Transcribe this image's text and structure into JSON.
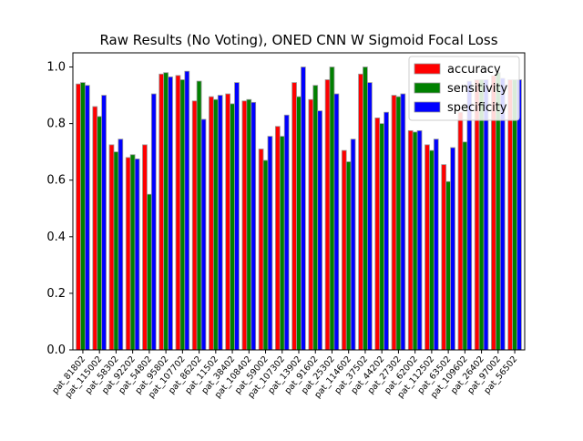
{
  "chart_data": {
    "type": "bar",
    "title": "Raw Results (No Voting), ONED CNN W Sigmoid Focal Loss",
    "xlabel": "",
    "ylabel": "",
    "ylim": [
      0,
      1.05
    ],
    "yticks": [
      0.0,
      0.2,
      0.4,
      0.6,
      0.8,
      1.0
    ],
    "ytick_labels": [
      "0.0",
      "0.2",
      "0.4",
      "0.6",
      "0.8",
      "1.0"
    ],
    "categories": [
      "pat_81802",
      "pat_115002",
      "pat_58302",
      "pat_92202",
      "pat_54802",
      "pat_95802",
      "pat_107702",
      "pat_86202",
      "pat_11502",
      "pat_38402",
      "pat_108402",
      "pat_59002",
      "pat_107302",
      "pat_13902",
      "pat_91602",
      "pat_25302",
      "pat_114602",
      "pat_37502",
      "pat_44202",
      "pat_27302",
      "pat_62002",
      "pat_112502",
      "pat_63502",
      "pat_109602",
      "pat_26402",
      "pat_97002",
      "pat_56502"
    ],
    "series": [
      {
        "name": "accuracy",
        "color": "#ff0000",
        "values": [
          0.94,
          0.86,
          0.725,
          0.68,
          0.725,
          0.975,
          0.97,
          0.88,
          0.895,
          0.905,
          0.88,
          0.71,
          0.79,
          0.945,
          0.885,
          0.955,
          0.705,
          0.975,
          0.82,
          0.9,
          0.775,
          0.725,
          0.655,
          0.84,
          0.955,
          0.97,
          0.955
        ]
      },
      {
        "name": "sensitivity",
        "color": "#008000",
        "values": [
          0.945,
          0.825,
          0.7,
          0.69,
          0.55,
          0.98,
          0.955,
          0.95,
          0.885,
          0.87,
          0.885,
          0.67,
          0.755,
          0.895,
          0.935,
          1.0,
          0.665,
          1.0,
          0.8,
          0.895,
          0.77,
          0.705,
          0.595,
          0.735,
          0.955,
          0.98,
          0.955
        ]
      },
      {
        "name": "specificity",
        "color": "#0000ff",
        "values": [
          0.935,
          0.9,
          0.745,
          0.675,
          0.905,
          0.965,
          0.985,
          0.815,
          0.9,
          0.945,
          0.875,
          0.755,
          0.83,
          1.0,
          0.845,
          0.905,
          0.745,
          0.945,
          0.84,
          0.905,
          0.775,
          0.745,
          0.715,
          0.95,
          0.955,
          0.96,
          0.955
        ]
      }
    ],
    "legend": {
      "placement": "top-right",
      "entries": [
        "accuracy",
        "sensitivity",
        "specificity"
      ]
    },
    "grid": false
  }
}
